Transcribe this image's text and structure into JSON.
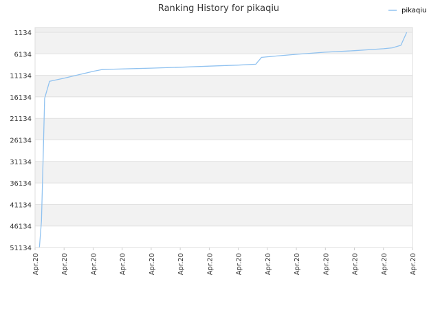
{
  "chart_data": {
    "type": "line",
    "title": "Ranking History for pikaqiu",
    "xlabel": "",
    "ylabel": "",
    "ylim": [
      51134,
      1134
    ],
    "y_reversed": true,
    "y_ticks": [
      "1134",
      "6134",
      "11134",
      "16134",
      "21134",
      "26134",
      "31134",
      "36134",
      "41134",
      "46134",
      "51134"
    ],
    "x_ticks": [
      "Apr.20",
      "Apr.20",
      "Apr.20",
      "Apr.20",
      "Apr.20",
      "Apr.20",
      "Apr.20",
      "Apr.20",
      "Apr.20",
      "Apr.20",
      "Apr.20",
      "Apr.20",
      "Apr.20",
      "Apr.20"
    ],
    "xlim": [
      0,
      13
    ],
    "grid": true,
    "legend_position": "top-right",
    "series": [
      {
        "name": "pikaqiu",
        "color": "#90c2f0",
        "x": [
          0.15,
          0.22,
          0.28,
          0.33,
          0.5,
          1.0,
          1.5,
          2.0,
          2.3,
          2.7,
          3.0,
          3.5,
          4.0,
          5.0,
          6.0,
          7.0,
          7.6,
          7.8,
          8.3,
          9.0,
          10.0,
          11.0,
          12.0,
          12.3,
          12.6,
          12.8
        ],
        "y": [
          51134,
          45000,
          30000,
          16500,
          12500,
          11800,
          11000,
          10200,
          9800,
          9700,
          9650,
          9550,
          9450,
          9250,
          9000,
          8750,
          8550,
          6950,
          6650,
          6250,
          5750,
          5400,
          4950,
          4750,
          4150,
          1134
        ]
      }
    ]
  }
}
